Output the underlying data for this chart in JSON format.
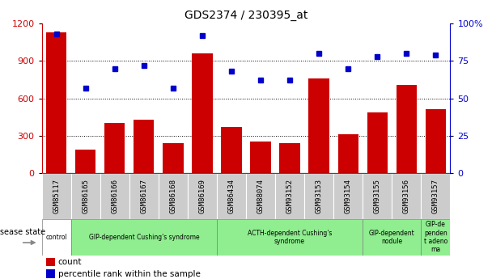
{
  "title": "GDS2374 / 230395_at",
  "samples": [
    "GSM85117",
    "GSM86165",
    "GSM86166",
    "GSM86167",
    "GSM86168",
    "GSM86169",
    "GSM86434",
    "GSM88074",
    "GSM93152",
    "GSM93153",
    "GSM93154",
    "GSM93155",
    "GSM93156",
    "GSM93157"
  ],
  "counts": [
    1130,
    190,
    400,
    430,
    240,
    960,
    370,
    250,
    240,
    760,
    310,
    490,
    710,
    510
  ],
  "percentiles": [
    93,
    57,
    70,
    72,
    57,
    92,
    68,
    62,
    62,
    80,
    70,
    78,
    80,
    79
  ],
  "disease_groups": [
    {
      "label": "control",
      "start": 0,
      "end": 1,
      "color": "#f0fff0"
    },
    {
      "label": "GIP-dependent Cushing's syndrome",
      "start": 1,
      "end": 6,
      "color": "#90ee90"
    },
    {
      "label": "ACTH-dependent Cushing's\nsyndrome",
      "start": 6,
      "end": 11,
      "color": "#90ee90"
    },
    {
      "label": "GIP-dependent\nnodule",
      "start": 11,
      "end": 13,
      "color": "#90ee90"
    },
    {
      "label": "GIP-de\npenden\nt adeno\nma",
      "start": 13,
      "end": 14,
      "color": "#90ee90"
    }
  ],
  "bar_color": "#cc0000",
  "dot_color": "#0000cc",
  "left_ylim": [
    0,
    1200
  ],
  "right_ylim": [
    0,
    100
  ],
  "left_yticks": [
    0,
    300,
    600,
    900,
    1200
  ],
  "right_yticks": [
    0,
    25,
    50,
    75,
    100
  ],
  "right_yticklabels": [
    "0",
    "25",
    "50",
    "75",
    "100%"
  ],
  "grid_values": [
    300,
    600,
    900
  ],
  "tick_label_row_color": "#cccccc",
  "disease_state_label": "disease state",
  "legend_count_label": "count",
  "legend_pct_label": "percentile rank within the sample"
}
